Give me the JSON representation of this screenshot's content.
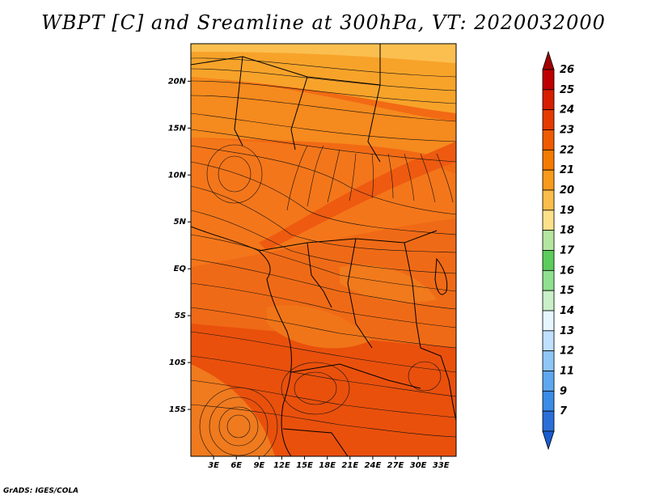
{
  "title": "WBPT [C] and Sreamline at 300hPa, VT: 2020032000",
  "credit": "GrADS: IGES/COLA",
  "map": {
    "lon_range": [
      0,
      35
    ],
    "lat_range": [
      -20,
      24
    ],
    "lat_ticks": [
      "20N",
      "15N",
      "10N",
      "5N",
      "EQ",
      "5S",
      "10S",
      "15S"
    ],
    "lat_values": [
      20,
      15,
      10,
      5,
      0,
      -5,
      -10,
      -15
    ],
    "lon_ticks": [
      "3E",
      "6E",
      "9E",
      "12E",
      "15E",
      "18E",
      "21E",
      "24E",
      "27E",
      "30E",
      "33E"
    ],
    "lon_values": [
      3,
      6,
      9,
      12,
      15,
      18,
      21,
      24,
      27,
      30,
      33
    ]
  },
  "colorbar": {
    "labels": [
      "26",
      "25",
      "24",
      "23",
      "22",
      "21",
      "20",
      "19",
      "18",
      "17",
      "16",
      "15",
      "14",
      "13",
      "12",
      "11",
      "9",
      "7"
    ],
    "colors": [
      "#c00000",
      "#d81e00",
      "#e63a00",
      "#ef5a00",
      "#f57a00",
      "#f89a1c",
      "#fbbd4a",
      "#fde08a",
      "#b4e6a0",
      "#5ccc5c",
      "#8fe08f",
      "#c9f0c9",
      "#e6f6ff",
      "#bfe0ff",
      "#8fc6f8",
      "#5ea8f0",
      "#3a8ce6",
      "#2a6fd8"
    ]
  }
}
